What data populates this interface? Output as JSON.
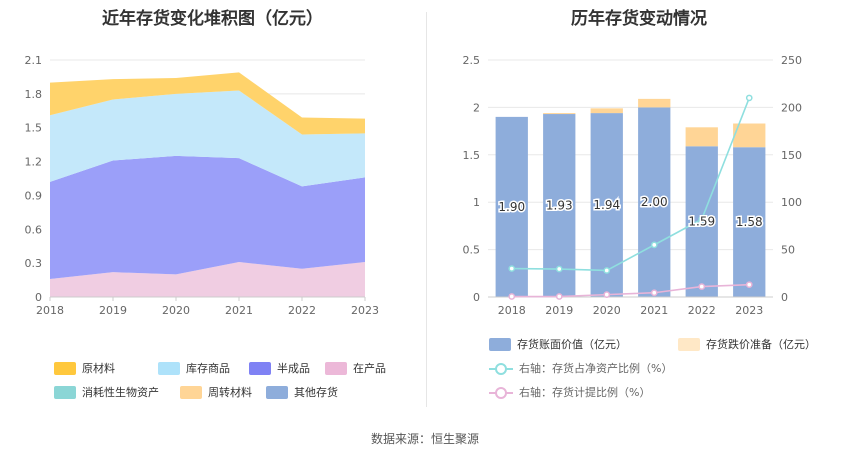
{
  "left": {
    "title": "近年存货变化堆积图（亿元）",
    "chart_data": {
      "type": "area",
      "stacked": true,
      "x": [
        "2018",
        "2019",
        "2020",
        "2021",
        "2022",
        "2023"
      ],
      "ylim": [
        0,
        2.1
      ],
      "yticks": [
        "0",
        "0.3",
        "0.6",
        "0.9",
        "1.2",
        "1.5",
        "1.8",
        "2.1"
      ],
      "series": [
        {
          "name": "在产品",
          "color": "#f0cde2",
          "values": [
            0.16,
            0.22,
            0.2,
            0.31,
            0.25,
            0.31
          ]
        },
        {
          "name": "半成品",
          "color": "#9b9ff9",
          "values": [
            0.86,
            0.99,
            1.05,
            0.92,
            0.73,
            0.75
          ]
        },
        {
          "name": "库存商品",
          "color": "#c4e8fa",
          "values": [
            0.59,
            0.54,
            0.55,
            0.6,
            0.46,
            0.39
          ]
        },
        {
          "name": "原材料",
          "color": "#ffd36b",
          "values": [
            0.29,
            0.18,
            0.14,
            0.16,
            0.15,
            0.13
          ]
        },
        {
          "name": "消耗性生物资产",
          "color": "#8fd9d9",
          "values": [
            0,
            0,
            0,
            0,
            0,
            0
          ]
        },
        {
          "name": "周转材料",
          "color": "#ffd9a0",
          "values": [
            0,
            0,
            0,
            0,
            0,
            0
          ]
        },
        {
          "name": "其他存货",
          "color": "#8eaddb",
          "values": [
            0,
            0,
            0,
            0,
            0,
            0
          ]
        }
      ]
    },
    "legend": [
      {
        "label": "原材料",
        "color": "#ffc83d"
      },
      {
        "label": "库存商品",
        "color": "#aee2fa"
      },
      {
        "label": "半成品",
        "color": "#7f82f4"
      },
      {
        "label": "在产品",
        "color": "#ecb8d8"
      },
      {
        "label": "消耗性生物资产",
        "color": "#8bd6d6"
      },
      {
        "label": "周转材料",
        "color": "#ffd596"
      },
      {
        "label": "其他存货",
        "color": "#8eaddb"
      }
    ]
  },
  "right": {
    "title": "历年存货变动情况",
    "chart_data": {
      "type": "bar",
      "categories": [
        "2018",
        "2019",
        "2020",
        "2021",
        "2022",
        "2023"
      ],
      "ylim": [
        0,
        2.5
      ],
      "y2lim": [
        0,
        250
      ],
      "yticks": [
        "0",
        "0.5",
        "1",
        "1.5",
        "2",
        "2.5"
      ],
      "y2ticks": [
        "0",
        "50",
        "100",
        "150",
        "200",
        "250"
      ],
      "series": [
        {
          "name": "存货账面价值（亿元）",
          "color": "#8eaddb",
          "values": [
            1.9,
            1.93,
            1.94,
            2.0,
            1.59,
            1.58
          ],
          "labels": [
            "1.90",
            "1.93",
            "1.94",
            "2.00",
            "1.59",
            "1.58"
          ]
        },
        {
          "name": "存货跌价准备（亿元）",
          "color": "#ffd596",
          "values": [
            0.0,
            0.01,
            0.05,
            0.09,
            0.2,
            0.25
          ]
        },
        {
          "name": "右轴：存货占净资产比例（%）",
          "color": "#8fdfdf",
          "axis": "right",
          "values": [
            30,
            29.5,
            28,
            55,
            82,
            210
          ]
        },
        {
          "name": "右轴：存货计提比例（%）",
          "color": "#e8b4d8",
          "axis": "right",
          "values": [
            0.5,
            0.5,
            2.5,
            4.5,
            11,
            13
          ]
        }
      ]
    },
    "legend": [
      {
        "label": "存货账面价值（亿元）",
        "color": "#8eaddb",
        "kind": "bar"
      },
      {
        "label": "存货跌价准备（亿元）",
        "color": "#ffe8c6",
        "kind": "bar"
      },
      {
        "label": "右轴：存货占净资产比例（%）",
        "color": "#8fdfdf",
        "kind": "line"
      },
      {
        "label": "右轴：存货计提比例（%）",
        "color": "#e8b4d8",
        "kind": "line"
      }
    ]
  },
  "source": "数据来源：恒生聚源"
}
